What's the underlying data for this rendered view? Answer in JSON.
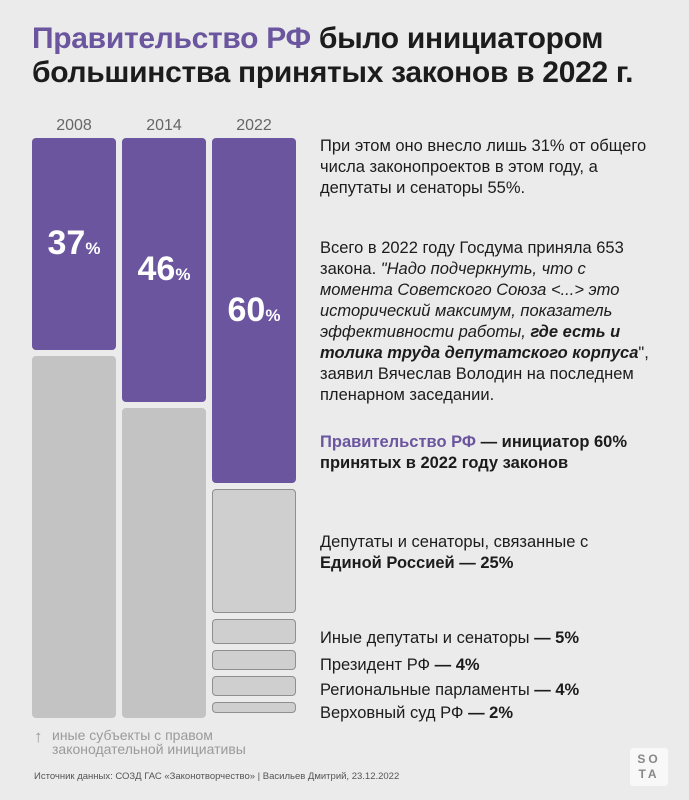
{
  "title": {
    "highlight": "Правительство РФ",
    "rest": " было инициатором большинства принятых законов в 2022 г."
  },
  "chart_data": {
    "type": "bar",
    "categories": [
      "2008",
      "2014",
      "2022"
    ],
    "series": [
      {
        "values": [
          37,
          46,
          60
        ]
      },
      {
        "values": [
          63,
          54,
          40
        ]
      }
    ],
    "labels": [
      "37",
      "46",
      "60"
    ],
    "unit": "%",
    "breakdown_2022": [
      {
        "label": "Депутаты и сенаторы, связанные с Единой Россией",
        "value": 25
      },
      {
        "label": "Иные депутаты и сенаторы",
        "value": 5
      },
      {
        "label": "Президент РФ",
        "value": 4
      },
      {
        "label": "Региональные парламенты",
        "value": 4
      },
      {
        "label": "Верховный суд РФ",
        "value": 2
      }
    ],
    "colors": {
      "government": "#6a559e",
      "other": "#c3c3c3"
    }
  },
  "text": {
    "p1": "При этом оно внесло лишь 31% от общего числа законопроектов в этом году, а депутаты и сенаторы 55%.",
    "p2_a": "Всего в 2022 году Госдума приняла 653 закона. ",
    "p2_q1": "\"Надо подчеркнуть, что с момента Советского Союза <...> это исторический максимум, показатель эффективности работы, ",
    "p2_qb": "где есть и толика труда депутатского корпуса",
    "p2_q2": "\"",
    "p2_b": ", заявил Вячеслав Володин на последнем пленарном заседании.",
    "gov_name": "Правительство РФ",
    "gov_rest": " — инициатор 60% принятых в 2022 году законов",
    "er_a": "Депутаты и сенаторы, связанные с",
    "er_b": "Единой Россией",
    "er_c": " — 25%",
    "other_dep": "Иные депутаты и сенаторы",
    "other_dep_v": " — 5%",
    "president": "Президент РФ",
    "president_v": " — 4%",
    "regional": "Региональные парламенты",
    "regional_v": " — 4%",
    "court": "Верховный суд РФ",
    "court_v": " — 2%"
  },
  "note": {
    "arrow": "↑",
    "line1": "иные субъекты с правом",
    "line2": "законодательной инициативы"
  },
  "source": "Источник данных: СОЗД ГАС «Законотворчество» | Васильев Дмитрий, 23.12.2022",
  "logo": {
    "top": "SO",
    "bottom": "TA"
  }
}
